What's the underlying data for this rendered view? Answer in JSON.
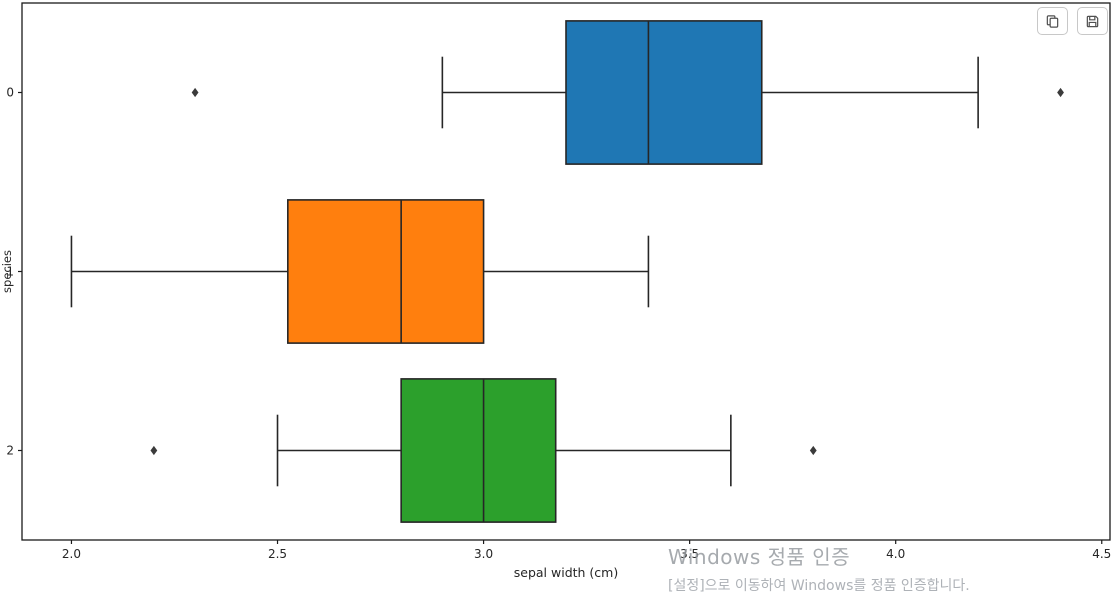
{
  "chart_data": {
    "type": "box",
    "orientation": "horizontal",
    "title": "",
    "xlabel": "sepal width (cm)",
    "ylabel": "species",
    "xlim": [
      1.88,
      4.52
    ],
    "grid": false,
    "categories": [
      "0",
      "1",
      "2"
    ],
    "x_ticks": [
      "2.0",
      "2.5",
      "3.0",
      "3.5",
      "4.0",
      "4.5"
    ],
    "x_tick_values": [
      2.0,
      2.5,
      3.0,
      3.5,
      4.0,
      4.5
    ],
    "series": [
      {
        "name": "0",
        "whisker_low": 2.9,
        "q1": 3.2,
        "median": 3.4,
        "q3": 3.675,
        "whisker_high": 4.2,
        "outliers": [
          2.3,
          4.4
        ],
        "color": "#1f77b4"
      },
      {
        "name": "1",
        "whisker_low": 2.0,
        "q1": 2.525,
        "median": 2.8,
        "q3": 3.0,
        "whisker_high": 3.4,
        "outliers": [],
        "color": "#ff7f0e"
      },
      {
        "name": "2",
        "whisker_low": 2.5,
        "q1": 2.8,
        "median": 3.0,
        "q3": 3.175,
        "whisker_high": 3.6,
        "outliers": [
          2.2,
          3.8
        ],
        "color": "#2ca02c"
      }
    ],
    "colors": {
      "line": "#262626",
      "outlier": "#3b3b3b",
      "background": "#ffffff"
    }
  },
  "toolbar": {
    "copy_label": "Copy",
    "save_label": "Save",
    "icons": [
      "copy-icon",
      "save-icon"
    ]
  },
  "watermark": {
    "line1": "Windows 정품 인증",
    "line2": "[설정]으로 이동하여 Windows를 정품 인증합니다."
  }
}
